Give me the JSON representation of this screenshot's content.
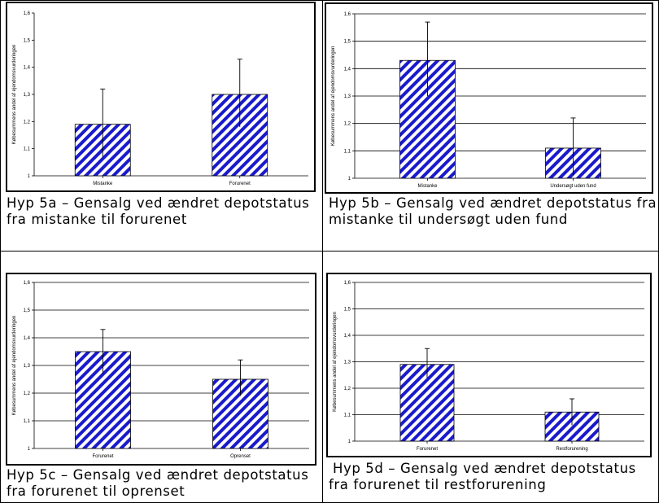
{
  "colors": {
    "bar_stripe": "#1a1acc",
    "bar_bg": "#ffffff",
    "gridline": "#000000",
    "frame": "#000000"
  },
  "panels": [
    {
      "caption_line1": "Hyp 5a – Gensalg ved ændret depotstatus",
      "caption_line2": "fra mistanke til forurenet",
      "chart_data": {
        "type": "bar",
        "ylabel": "Købesummens andel af ejendomsvurderingen",
        "ylim": [
          1,
          1.6
        ],
        "yticks": [
          "1",
          "1,1",
          "1,2",
          "1,3",
          "1,4",
          "1,5",
          "1,6"
        ],
        "gridlines": false,
        "categories": [
          "Mistanke",
          "Forurenet"
        ],
        "values": [
          1.19,
          1.3
        ],
        "error_high": [
          1.32,
          1.43
        ],
        "error_low": [
          1.07,
          1.18
        ]
      }
    },
    {
      "caption_line1": "Hyp 5b – Gensalg ved ændret depotstatus fra",
      "caption_line2": "mistanke til undersøgt uden fund",
      "chart_data": {
        "type": "bar",
        "ylabel": "Købesummens andel af ejendomsvurderingen",
        "ylim": [
          1,
          1.6
        ],
        "yticks": [
          "1",
          "1,1",
          "1,2",
          "1,3",
          "1,4",
          "1,5",
          "1,6"
        ],
        "gridlines": true,
        "categories": [
          "Mistanke",
          "Undersøgt uden fund"
        ],
        "values": [
          1.43,
          1.11
        ],
        "error_high": [
          1.57,
          1.22
        ],
        "error_low": [
          1.3,
          1.01
        ]
      }
    },
    {
      "caption_line1": "Hyp 5c – Gensalg ved ændret depotstatus",
      "caption_line2": "fra forurenet til oprenset",
      "chart_data": {
        "type": "bar",
        "ylabel": "Købesummens andel af ejendomsvurderingen",
        "ylim": [
          1,
          1.6
        ],
        "yticks": [
          "1",
          "1,1",
          "1,2",
          "1,3",
          "1,4",
          "1,5",
          "1,6"
        ],
        "gridlines": true,
        "categories": [
          "Forurenet",
          "Oprenset"
        ],
        "values": [
          1.35,
          1.25
        ],
        "error_high": [
          1.43,
          1.32
        ],
        "error_low": [
          1.27,
          1.19
        ]
      }
    },
    {
      "caption_line1": "Hyp 5d – Gensalg ved ændret depotstatus",
      "caption_line2": "fra forurenet til restforurening",
      "chart_data": {
        "type": "bar",
        "ylabel": "Købesummens andel af ejendomsvurderingen",
        "ylim": [
          1,
          1.6
        ],
        "yticks": [
          "1",
          "1,1",
          "1,2",
          "1,3",
          "1,4",
          "1,5",
          "1,6"
        ],
        "gridlines": true,
        "categories": [
          "Forurenet",
          "Restforurening"
        ],
        "values": [
          1.29,
          1.11
        ],
        "error_high": [
          1.35,
          1.16
        ],
        "error_low": [
          1.24,
          1.06
        ]
      }
    }
  ]
}
